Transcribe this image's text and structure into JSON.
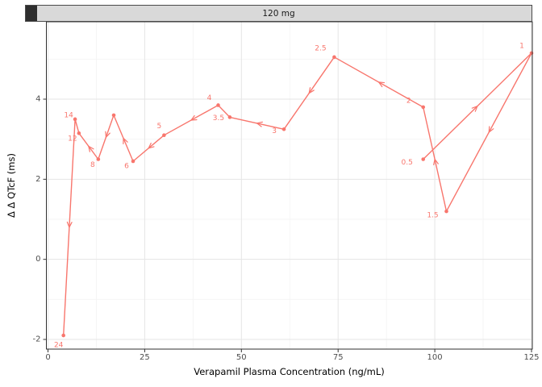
{
  "figure": {
    "strip_label": "120 mg"
  },
  "colors": {
    "series": "#F8766D",
    "strip_background": "#D9D9D9",
    "grid_major": "#E5E5E5",
    "grid_minor": "#F3F3F3",
    "panel_border": "#2F2F2F",
    "tick_label": "#4D4D4D"
  },
  "chart_data": {
    "type": "line",
    "title": "120 mg",
    "xlabel": "Verapamil Plasma Concentration (ng/mL)",
    "ylabel": "Δ Δ QTcF (ms)",
    "xlim": [
      -1,
      127
    ],
    "ylim": [
      -2.25,
      5.95
    ],
    "x_ticks": [
      0,
      25,
      50,
      75,
      100,
      125
    ],
    "x_minor_ticks": [
      12.5,
      37.5,
      62.5,
      87.5,
      112.5
    ],
    "y_ticks": [
      -2,
      0,
      2,
      4
    ],
    "y_minor_ticks": [
      -1,
      1,
      3,
      5
    ],
    "grid": true,
    "legend": "none",
    "series_color": "#F8766D",
    "description": "Hysteresis plot: points connected in time order (hours post-dose) with arrows; each point labeled with its time.",
    "points": [
      {
        "label": "0.5",
        "x": 97,
        "y": 2.5
      },
      {
        "label": "1",
        "x": 125,
        "y": 5.15
      },
      {
        "label": "1.5",
        "x": 103,
        "y": 1.2
      },
      {
        "label": "2",
        "x": 97,
        "y": 3.8
      },
      {
        "label": "2.5",
        "x": 74,
        "y": 5.05
      },
      {
        "label": "3",
        "x": 61,
        "y": 3.25
      },
      {
        "label": "3.5",
        "x": 47,
        "y": 3.55
      },
      {
        "label": "4",
        "x": 44,
        "y": 3.85
      },
      {
        "label": "5",
        "x": 30,
        "y": 3.1
      },
      {
        "label": "6",
        "x": 22,
        "y": 2.45
      },
      {
        "label": "",
        "x": 17,
        "y": 3.6
      },
      {
        "label": "8",
        "x": 13,
        "y": 2.5
      },
      {
        "label": "12",
        "x": 8,
        "y": 3.15
      },
      {
        "label": "14",
        "x": 7,
        "y": 3.5
      },
      {
        "label": "24",
        "x": 4,
        "y": -1.9
      }
    ]
  }
}
